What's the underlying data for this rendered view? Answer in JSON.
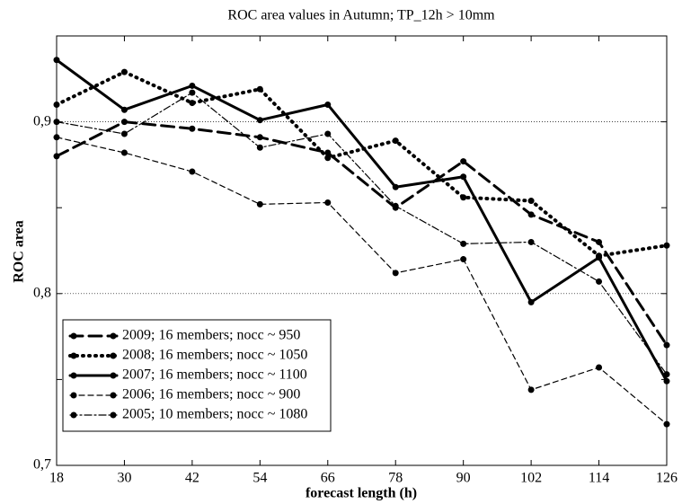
{
  "chart_data": {
    "type": "line",
    "title": "ROC area values in Autumn; TP_12h > 10mm",
    "x_label": "forecast length (h)",
    "y_label": "ROC area",
    "x": [
      18,
      30,
      42,
      54,
      66,
      78,
      90,
      102,
      114,
      126
    ],
    "xlim": [
      18,
      126
    ],
    "xticks": [
      18,
      30,
      42,
      54,
      66,
      78,
      90,
      102,
      114,
      126
    ],
    "ylim": [
      0.7,
      0.95
    ],
    "yticks": [
      {
        "value": 0.7,
        "label": "0,7"
      },
      {
        "value": 0.8,
        "label": "0,8"
      },
      {
        "value": 0.9,
        "label": "0,9"
      }
    ],
    "minor_yticks": [
      0.75,
      0.85
    ],
    "grid": true,
    "legend": "lower left",
    "series": [
      {
        "name": "2009; 16 members; nocc ~ 950",
        "color": "#000000",
        "dash": "14,7",
        "width": 3,
        "values": [
          0.88,
          0.9,
          0.896,
          0.891,
          0.882,
          0.85,
          0.877,
          0.846,
          0.83,
          0.77
        ]
      },
      {
        "name": "2008; 16 members; nocc ~ 1050",
        "color": "#000000",
        "dash": "1,6",
        "width": 4,
        "values": [
          0.91,
          0.929,
          0.911,
          0.919,
          0.879,
          0.889,
          0.856,
          0.854,
          0.822,
          0.828
        ]
      },
      {
        "name": "2007; 16 members; nocc ~ 1100",
        "color": "#000000",
        "dash": "none",
        "width": 3,
        "values": [
          0.936,
          0.907,
          0.921,
          0.901,
          0.91,
          0.862,
          0.868,
          0.795,
          0.821,
          0.749
        ]
      },
      {
        "name": "2006; 16 members; nocc ~ 900",
        "color": "#000000",
        "dash": "6,4",
        "width": 1.2,
        "values": [
          0.891,
          0.882,
          0.871,
          0.852,
          0.853,
          0.812,
          0.82,
          0.744,
          0.757,
          0.724
        ]
      },
      {
        "name": "2005; 10 members; nocc ~ 1080",
        "color": "#000000",
        "dash": "8,3,2,3",
        "width": 1.2,
        "values": [
          0.9,
          0.893,
          0.917,
          0.885,
          0.893,
          0.851,
          0.829,
          0.83,
          0.807,
          0.753
        ]
      }
    ]
  }
}
